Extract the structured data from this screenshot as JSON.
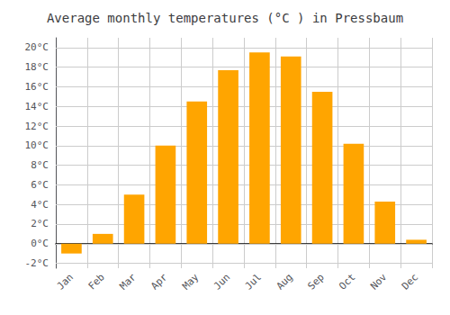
{
  "chart_data": {
    "type": "bar",
    "title": "Average monthly temperatures (°C ) in Pressbaum",
    "categories": [
      "Jan",
      "Feb",
      "Mar",
      "Apr",
      "May",
      "Jun",
      "Jul",
      "Aug",
      "Sep",
      "Oct",
      "Nov",
      "Dec"
    ],
    "values": [
      -1.0,
      1.0,
      5.0,
      10.0,
      14.5,
      17.7,
      19.5,
      19.1,
      15.5,
      10.2,
      4.3,
      0.4
    ],
    "color": "#FFA500",
    "ylim": [
      -2.5,
      21
    ],
    "yticks": [
      {
        "value": -2,
        "label": "-2°C"
      },
      {
        "value": 0,
        "label": "0°C"
      },
      {
        "value": 2,
        "label": "2°C"
      },
      {
        "value": 4,
        "label": "4°C"
      },
      {
        "value": 6,
        "label": "6°C"
      },
      {
        "value": 8,
        "label": "8°C"
      },
      {
        "value": 10,
        "label": "10°C"
      },
      {
        "value": 12,
        "label": "12°C"
      },
      {
        "value": 14,
        "label": "14°C"
      },
      {
        "value": 16,
        "label": "16°C"
      },
      {
        "value": 18,
        "label": "18°C"
      },
      {
        "value": 20,
        "label": "20°C"
      }
    ],
    "grid": true
  }
}
